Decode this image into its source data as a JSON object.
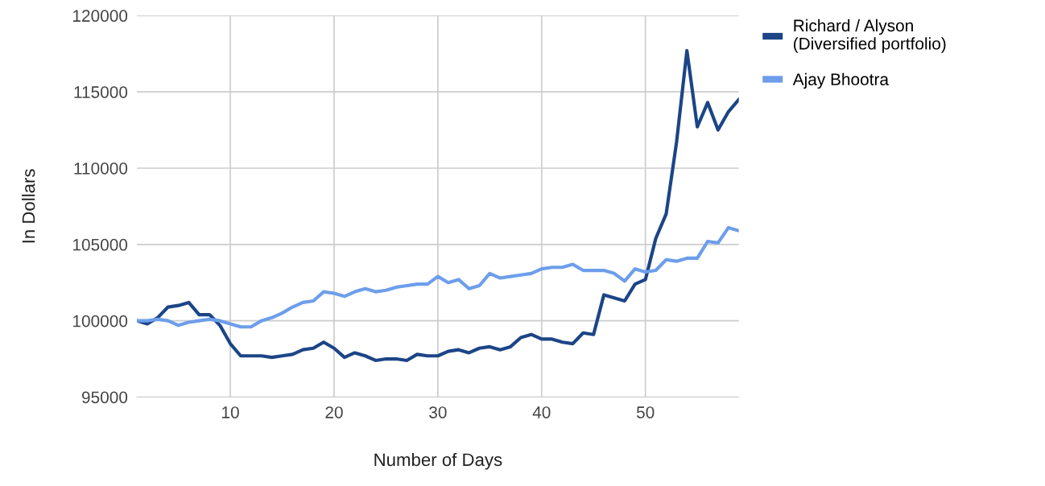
{
  "chart_data": {
    "type": "line",
    "xlabel": "Number of Days",
    "ylabel": "In Dollars",
    "x": [
      1,
      2,
      3,
      4,
      5,
      6,
      7,
      8,
      9,
      10,
      11,
      12,
      13,
      14,
      15,
      16,
      17,
      18,
      19,
      20,
      21,
      22,
      23,
      24,
      25,
      26,
      27,
      28,
      29,
      30,
      31,
      32,
      33,
      34,
      35,
      36,
      37,
      38,
      39,
      40,
      41,
      42,
      43,
      44,
      45,
      46,
      47,
      48,
      49,
      50,
      51,
      52,
      53,
      54,
      55,
      56,
      57,
      58,
      59
    ],
    "series": [
      {
        "name": "Richard / Alyson (Diversified portfolio)",
        "color": "#1c4587",
        "values": [
          100000,
          99800,
          100200,
          100900,
          101000,
          101200,
          100400,
          100400,
          99700,
          98500,
          97700,
          97700,
          97700,
          97600,
          97700,
          97800,
          98100,
          98200,
          98600,
          98200,
          97600,
          97900,
          97700,
          97400,
          97500,
          97500,
          97400,
          97800,
          97700,
          97700,
          98000,
          98100,
          97900,
          98200,
          98300,
          98100,
          98300,
          98900,
          99100,
          98800,
          98800,
          98600,
          98500,
          99200,
          99100,
          101700,
          101500,
          101300,
          102400,
          102700,
          105400,
          107000,
          111700,
          117700,
          112700,
          114300,
          112500,
          113700,
          114500
        ]
      },
      {
        "name": "Ajay Bhootra",
        "color": "#6d9eeb",
        "values": [
          100000,
          100000,
          100100,
          100000,
          99700,
          99900,
          100000,
          100100,
          100000,
          99800,
          99600,
          99600,
          100000,
          100200,
          100500,
          100900,
          101200,
          101300,
          101900,
          101800,
          101600,
          101900,
          102100,
          101900,
          102000,
          102200,
          102300,
          102400,
          102400,
          102900,
          102500,
          102700,
          102100,
          102300,
          103100,
          102800,
          102900,
          103000,
          103100,
          103400,
          103500,
          103500,
          103700,
          103300,
          103300,
          103300,
          103100,
          102600,
          103400,
          103200,
          103300,
          104000,
          103900,
          104100,
          104100,
          105200,
          105100,
          106100,
          105900
        ]
      }
    ],
    "xlim": [
      1,
      59
    ],
    "xticks": [
      10,
      20,
      30,
      40,
      50
    ],
    "ylim": [
      95000,
      120000
    ],
    "yticks": [
      95000,
      100000,
      105000,
      110000,
      115000,
      120000
    ],
    "grid": true,
    "legend": "top right",
    "line_style": "solid",
    "marker": "none"
  }
}
